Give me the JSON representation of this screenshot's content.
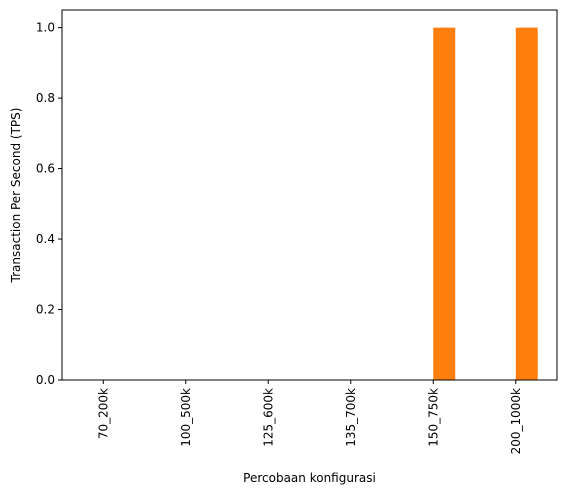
{
  "chart_data": {
    "type": "bar",
    "categories": [
      "70_200k",
      "100_500k",
      "125_600k",
      "135_700k",
      "150_750k",
      "200_1000k"
    ],
    "values": [
      0,
      0,
      0,
      0,
      1,
      1
    ],
    "title": "",
    "xlabel": "Percobaan konfigurasi",
    "ylabel": "Transaction Per Second (TPS)",
    "ylim": [
      0,
      1.05
    ],
    "yticks": [
      "0.0",
      "0.2",
      "0.4",
      "0.6",
      "0.8",
      "1.0"
    ],
    "bar_color": "#ff7f0e",
    "grid": false,
    "legend": "none"
  }
}
